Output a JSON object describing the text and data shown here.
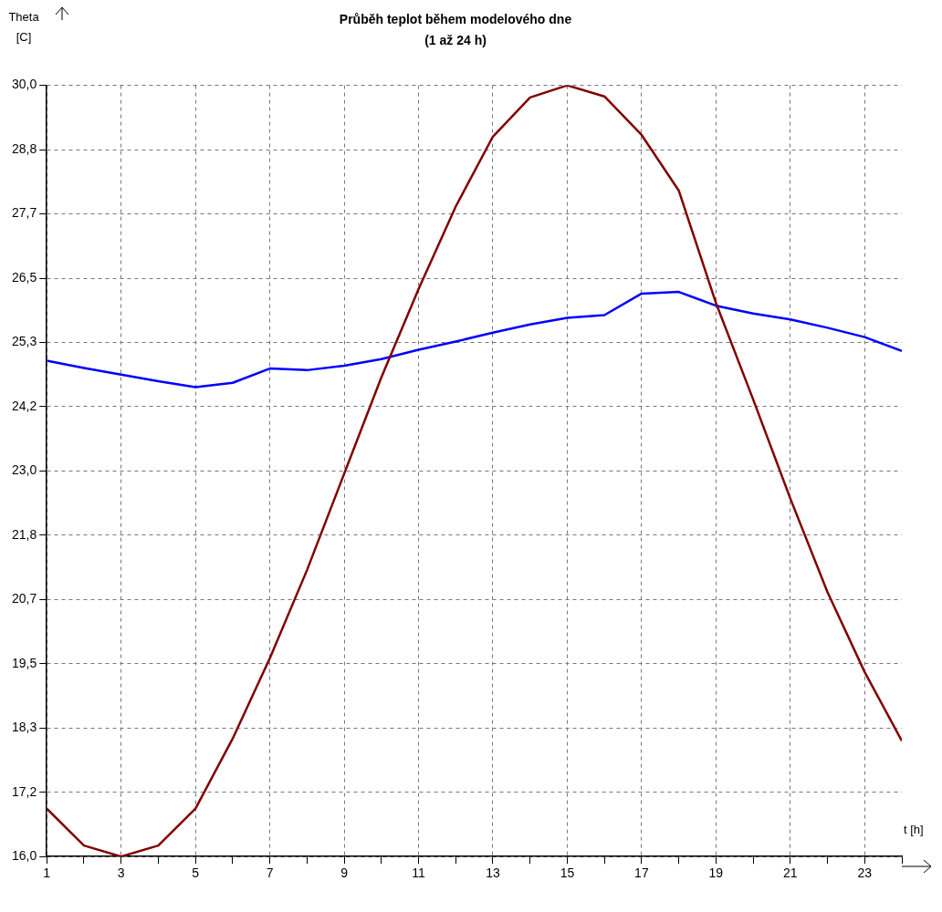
{
  "chart_data": {
    "type": "line",
    "title": "Průběh teplot během modelového dne",
    "subtitle": "(1 až 24 h)",
    "xlabel": "t [h]",
    "ylabel": "Theta [C]",
    "x": [
      1,
      2,
      3,
      4,
      5,
      6,
      7,
      8,
      9,
      10,
      11,
      12,
      13,
      14,
      15,
      16,
      17,
      18,
      19,
      20,
      21,
      22,
      23,
      24
    ],
    "series": [
      {
        "color": "#800000",
        "values": [
          16.87,
          16.2,
          16.0,
          16.2,
          16.87,
          18.14,
          19.6,
          21.2,
          22.95,
          24.7,
          26.3,
          27.8,
          29.07,
          29.78,
          30.0,
          29.8,
          29.1,
          28.09,
          26.05,
          24.3,
          22.5,
          20.8,
          19.35,
          18.1
        ]
      },
      {
        "color": "#0000ff",
        "values": [
          25.0,
          24.87,
          24.75,
          24.63,
          24.52,
          24.6,
          24.86,
          24.83,
          24.91,
          25.03,
          25.2,
          25.35,
          25.51,
          25.66,
          25.78,
          25.83,
          26.22,
          26.25,
          26.0,
          25.86,
          25.75,
          25.6,
          25.43,
          25.18
        ]
      }
    ],
    "xlim": [
      1,
      24
    ],
    "xticks": [
      1,
      {
        "value": 2,
        "label": null
      },
      3,
      {
        "value": 4,
        "label": null
      },
      5,
      {
        "value": 6,
        "label": null
      },
      7,
      {
        "value": 8,
        "label": null
      },
      9,
      {
        "value": 10,
        "label": null
      },
      11,
      {
        "value": 12,
        "label": null
      },
      13,
      {
        "value": 14,
        "label": null
      },
      15,
      {
        "value": 16,
        "label": null
      },
      17,
      {
        "value": 18,
        "label": null
      },
      19,
      {
        "value": 20,
        "label": null
      },
      21,
      {
        "value": 22,
        "label": null
      },
      23,
      {
        "value": 24,
        "label": null
      }
    ],
    "ylim": [
      16,
      30
    ],
    "yticks": [
      {
        "value": 16,
        "label": "16,0"
      },
      {
        "value": 17.1667,
        "label": "17,2"
      },
      {
        "value": 18.3333,
        "label": "18,3"
      },
      {
        "value": 19.5,
        "label": "19,5"
      },
      {
        "value": 20.6667,
        "label": "20,7"
      },
      {
        "value": 21.8333,
        "label": "21,8"
      },
      {
        "value": 23,
        "label": "23,0"
      },
      {
        "value": 24.1667,
        "label": "24,2"
      },
      {
        "value": 25.3333,
        "label": "25,3"
      },
      {
        "value": 26.5,
        "label": "26,5"
      },
      {
        "value": 27.6667,
        "label": "27,7"
      },
      {
        "value": 28.8333,
        "label": "28,8"
      },
      {
        "value": 30,
        "label": "30,0"
      }
    ],
    "grid": true,
    "legend": false,
    "marker": "none",
    "line_style": "solid"
  }
}
